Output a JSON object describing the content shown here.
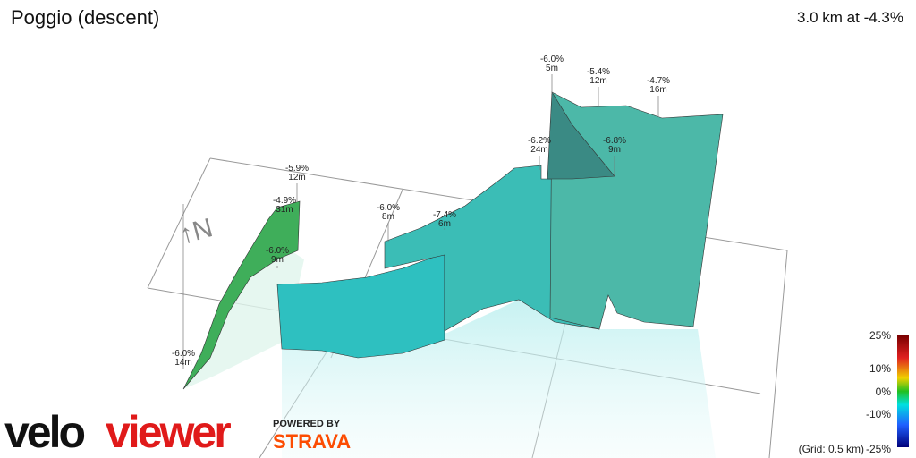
{
  "header": {
    "title": "Poggio (descent)",
    "summary": "3.0 km at -4.3%"
  },
  "annotations": [
    {
      "grade": "-6.0%",
      "length": "14m"
    },
    {
      "grade": "-6.0%",
      "length": "9m"
    },
    {
      "grade": "-4.9%",
      "length": "31m"
    },
    {
      "grade": "-5.9%",
      "length": "12m"
    },
    {
      "grade": "-6.0%",
      "length": "8m"
    },
    {
      "grade": "-7.4%",
      "length": "6m"
    },
    {
      "grade": "-6.2%",
      "length": "24m"
    },
    {
      "grade": "-6.0%",
      "length": "5m"
    },
    {
      "grade": "-5.4%",
      "length": "12m"
    },
    {
      "grade": "-6.8%",
      "length": "9m"
    },
    {
      "grade": "-4.7%",
      "length": "16m"
    }
  ],
  "legend": {
    "labels": [
      "25%",
      "10%",
      "0%",
      "-10%"
    ],
    "grid_note": "(Grid: 0.5 km)",
    "min_label": "-25%"
  },
  "branding": {
    "velo": "velo",
    "viewer": "viewer",
    "powered_by": "POWERED BY",
    "strava": "STRAVA"
  }
}
